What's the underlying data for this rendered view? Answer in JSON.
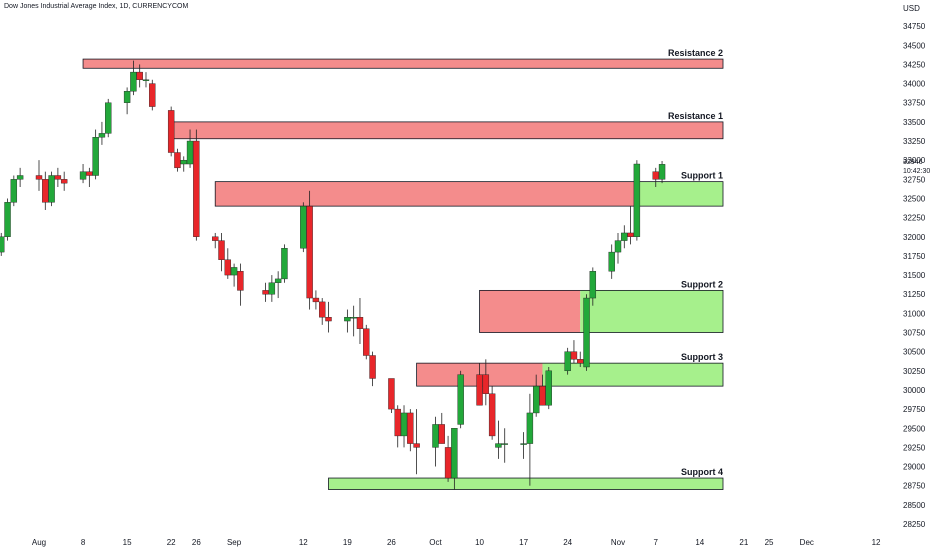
{
  "chart_title": "Dow Jones Industrial Average Index, 1D, CURRENCYCOM",
  "colors": {
    "up": "#22a83a",
    "down": "#e8262a",
    "resistance_fill": "#f48c8c",
    "support_fill": "#a6f08c",
    "zone_border": "#131722"
  },
  "chart_data": {
    "type": "candlestick",
    "title": "Dow Jones Industrial Average Index, 1D, CURRENCYCOM",
    "currency": "USD",
    "ylim": [
      28250,
      35000
    ],
    "y_ticks": [
      28250,
      28500,
      28750,
      29000,
      29250,
      29500,
      29750,
      30000,
      30250,
      30500,
      30750,
      31000,
      31250,
      31500,
      31750,
      32000,
      32250,
      32500,
      32750,
      33000,
      33250,
      33500,
      33750,
      34000,
      34250,
      34500,
      34750
    ],
    "x_ticks": [
      {
        "label": "Aug",
        "date": "2022-08-01"
      },
      {
        "label": "8",
        "date": "2022-08-08"
      },
      {
        "label": "15",
        "date": "2022-08-15"
      },
      {
        "label": "22",
        "date": "2022-08-22"
      },
      {
        "label": "26",
        "date": "2022-08-26"
      },
      {
        "label": "Sep",
        "date": "2022-09-01"
      },
      {
        "label": "12",
        "date": "2022-09-12"
      },
      {
        "label": "19",
        "date": "2022-09-19"
      },
      {
        "label": "26",
        "date": "2022-09-26"
      },
      {
        "label": "Oct",
        "date": "2022-10-03"
      },
      {
        "label": "10",
        "date": "2022-10-10"
      },
      {
        "label": "17",
        "date": "2022-10-17"
      },
      {
        "label": "24",
        "date": "2022-10-24"
      },
      {
        "label": "Nov",
        "date": "2022-11-01"
      },
      {
        "label": "7",
        "date": "2022-11-07"
      },
      {
        "label": "14",
        "date": "2022-11-14"
      },
      {
        "label": "21",
        "date": "2022-11-21"
      },
      {
        "label": "25",
        "date": "2022-11-25"
      },
      {
        "label": "Dec",
        "date": "2022-12-01"
      },
      {
        "label": "12",
        "date": "2022-12-12"
      }
    ],
    "price_tags": [
      "32946",
      "10:42:30"
    ],
    "candles": [
      {
        "date": "2022-07-25",
        "o": 31750,
        "h": 31850,
        "l": 31700,
        "c": 31800
      },
      {
        "date": "2022-07-26",
        "o": 31800,
        "h": 32050,
        "l": 31750,
        "c": 32000
      },
      {
        "date": "2022-07-27",
        "o": 32000,
        "h": 32500,
        "l": 31950,
        "c": 32450
      },
      {
        "date": "2022-07-28",
        "o": 32450,
        "h": 32800,
        "l": 32400,
        "c": 32750
      },
      {
        "date": "2022-07-29",
        "o": 32750,
        "h": 32900,
        "l": 32650,
        "c": 32800
      },
      {
        "date": "2022-08-01",
        "o": 32800,
        "h": 33000,
        "l": 32600,
        "c": 32750
      },
      {
        "date": "2022-08-02",
        "o": 32750,
        "h": 32850,
        "l": 32350,
        "c": 32450
      },
      {
        "date": "2022-08-03",
        "o": 32450,
        "h": 32850,
        "l": 32400,
        "c": 32800
      },
      {
        "date": "2022-08-04",
        "o": 32800,
        "h": 32900,
        "l": 32650,
        "c": 32750
      },
      {
        "date": "2022-08-05",
        "o": 32750,
        "h": 32850,
        "l": 32600,
        "c": 32700
      },
      {
        "date": "2022-08-08",
        "o": 32750,
        "h": 32950,
        "l": 32700,
        "c": 32850
      },
      {
        "date": "2022-08-09",
        "o": 32850,
        "h": 32900,
        "l": 32650,
        "c": 32800
      },
      {
        "date": "2022-08-10",
        "o": 32800,
        "h": 33400,
        "l": 32750,
        "c": 33300
      },
      {
        "date": "2022-08-11",
        "o": 33300,
        "h": 33500,
        "l": 33200,
        "c": 33350
      },
      {
        "date": "2022-08-12",
        "o": 33350,
        "h": 33800,
        "l": 33300,
        "c": 33750
      },
      {
        "date": "2022-08-15",
        "o": 33750,
        "h": 33950,
        "l": 33600,
        "c": 33900
      },
      {
        "date": "2022-08-16",
        "o": 33900,
        "h": 34300,
        "l": 33850,
        "c": 34150
      },
      {
        "date": "2022-08-17",
        "o": 34150,
        "h": 34250,
        "l": 33950,
        "c": 34050
      },
      {
        "date": "2022-08-18",
        "o": 34050,
        "h": 34150,
        "l": 33950,
        "c": 34050
      },
      {
        "date": "2022-08-19",
        "o": 34000,
        "h": 34050,
        "l": 33650,
        "c": 33700
      },
      {
        "date": "2022-08-22",
        "o": 33650,
        "h": 33700,
        "l": 33050,
        "c": 33100
      },
      {
        "date": "2022-08-23",
        "o": 33100,
        "h": 33150,
        "l": 32850,
        "c": 32900
      },
      {
        "date": "2022-08-24",
        "o": 32950,
        "h": 33050,
        "l": 32850,
        "c": 33000
      },
      {
        "date": "2022-08-25",
        "o": 32950,
        "h": 33400,
        "l": 32900,
        "c": 33250
      },
      {
        "date": "2022-08-26",
        "o": 33250,
        "h": 33400,
        "l": 31950,
        "c": 32000
      },
      {
        "date": "2022-08-29",
        "o": 32000,
        "h": 32050,
        "l": 31850,
        "c": 31950
      },
      {
        "date": "2022-08-30",
        "o": 31950,
        "h": 32050,
        "l": 31550,
        "c": 31700
      },
      {
        "date": "2022-08-31",
        "o": 31700,
        "h": 31850,
        "l": 31450,
        "c": 31500
      },
      {
        "date": "2022-09-01",
        "o": 31500,
        "h": 31650,
        "l": 31350,
        "c": 31600
      },
      {
        "date": "2022-09-02",
        "o": 31550,
        "h": 31650,
        "l": 31100,
        "c": 31300
      },
      {
        "date": "2022-09-06",
        "o": 31300,
        "h": 31400,
        "l": 31150,
        "c": 31250
      },
      {
        "date": "2022-09-07",
        "o": 31250,
        "h": 31500,
        "l": 31150,
        "c": 31400
      },
      {
        "date": "2022-09-08",
        "o": 31400,
        "h": 31550,
        "l": 31200,
        "c": 31450
      },
      {
        "date": "2022-09-09",
        "o": 31450,
        "h": 31900,
        "l": 31400,
        "c": 31850
      },
      {
        "date": "2022-09-12",
        "o": 31850,
        "h": 32450,
        "l": 31800,
        "c": 32400
      },
      {
        "date": "2022-09-13",
        "o": 32400,
        "h": 32600,
        "l": 31050,
        "c": 31200
      },
      {
        "date": "2022-09-14",
        "o": 31200,
        "h": 31300,
        "l": 31050,
        "c": 31150
      },
      {
        "date": "2022-09-15",
        "o": 31150,
        "h": 31200,
        "l": 30850,
        "c": 30950
      },
      {
        "date": "2022-09-16",
        "o": 30950,
        "h": 31150,
        "l": 30750,
        "c": 30900
      },
      {
        "date": "2022-09-19",
        "o": 30900,
        "h": 31050,
        "l": 30750,
        "c": 30950
      },
      {
        "date": "2022-09-20",
        "o": 30950,
        "h": 31100,
        "l": 30700,
        "c": 30950
      },
      {
        "date": "2022-09-21",
        "o": 30950,
        "h": 31200,
        "l": 30600,
        "c": 30800
      },
      {
        "date": "2022-09-22",
        "o": 30800,
        "h": 30850,
        "l": 30400,
        "c": 30450
      },
      {
        "date": "2022-09-23",
        "o": 30450,
        "h": 30500,
        "l": 30050,
        "c": 30150
      },
      {
        "date": "2022-09-26",
        "o": 30150,
        "h": 30150,
        "l": 29700,
        "c": 29750
      },
      {
        "date": "2022-09-27",
        "o": 29750,
        "h": 29800,
        "l": 29250,
        "c": 29400
      },
      {
        "date": "2022-09-28",
        "o": 29400,
        "h": 29800,
        "l": 29250,
        "c": 29700
      },
      {
        "date": "2022-09-29",
        "o": 29700,
        "h": 29750,
        "l": 29200,
        "c": 29300
      },
      {
        "date": "2022-09-30",
        "o": 29300,
        "h": 29750,
        "l": 28900,
        "c": 29250
      },
      {
        "date": "2022-10-03",
        "o": 29250,
        "h": 29650,
        "l": 29000,
        "c": 29550
      },
      {
        "date": "2022-10-04",
        "o": 29550,
        "h": 29700,
        "l": 29300,
        "c": 29300
      },
      {
        "date": "2022-10-05",
        "o": 29250,
        "h": 29400,
        "l": 28800,
        "c": 28850
      },
      {
        "date": "2022-10-06",
        "o": 28850,
        "h": 29500,
        "l": 28700,
        "c": 29500
      },
      {
        "date": "2022-10-07",
        "o": 29550,
        "h": 30250,
        "l": 29500,
        "c": 30200
      },
      {
        "date": "2022-10-10",
        "o": 30200,
        "h": 30350,
        "l": 29800,
        "c": 29800
      },
      {
        "date": "2022-10-11",
        "o": 30200,
        "h": 30400,
        "l": 29800,
        "c": 29950
      },
      {
        "date": "2022-10-12",
        "o": 29950,
        "h": 30050,
        "l": 29350,
        "c": 29400
      },
      {
        "date": "2022-10-13",
        "o": 29250,
        "h": 29600,
        "l": 29100,
        "c": 29300
      },
      {
        "date": "2022-10-14",
        "o": 29300,
        "h": 29500,
        "l": 29050,
        "c": 29300
      },
      {
        "date": "2022-10-17",
        "o": 29300,
        "h": 29450,
        "l": 29100,
        "c": 29300
      },
      {
        "date": "2022-10-18",
        "o": 29300,
        "h": 29950,
        "l": 28750,
        "c": 29700
      },
      {
        "date": "2022-10-19",
        "o": 29700,
        "h": 30200,
        "l": 29650,
        "c": 30050
      },
      {
        "date": "2022-10-20",
        "o": 30050,
        "h": 30200,
        "l": 29800,
        "c": 29800
      },
      {
        "date": "2022-10-21",
        "o": 29800,
        "h": 30300,
        "l": 29750,
        "c": 30250
      },
      {
        "date": "2022-10-24",
        "o": 30250,
        "h": 30550,
        "l": 30200,
        "c": 30500
      },
      {
        "date": "2022-10-25",
        "o": 30500,
        "h": 30650,
        "l": 30350,
        "c": 30400
      },
      {
        "date": "2022-10-26",
        "o": 30400,
        "h": 30500,
        "l": 30300,
        "c": 30350
      },
      {
        "date": "2022-10-27",
        "o": 30300,
        "h": 31250,
        "l": 30250,
        "c": 31200
      },
      {
        "date": "2022-10-28",
        "o": 31200,
        "h": 31600,
        "l": 31100,
        "c": 31550
      },
      {
        "date": "2022-10-31",
        "o": 31550,
        "h": 31900,
        "l": 31450,
        "c": 31800
      },
      {
        "date": "2022-11-01",
        "o": 31800,
        "h": 32050,
        "l": 31650,
        "c": 31950
      },
      {
        "date": "2022-11-02",
        "o": 31950,
        "h": 32150,
        "l": 31850,
        "c": 32050
      },
      {
        "date": "2022-11-03",
        "o": 32050,
        "h": 32400,
        "l": 31900,
        "c": 32000
      },
      {
        "date": "2022-11-04",
        "o": 32000,
        "h": 33000,
        "l": 31950,
        "c": 32950
      },
      {
        "date": "2022-11-07",
        "o": 32850,
        "h": 32900,
        "l": 32650,
        "c": 32750
      },
      {
        "date": "2022-11-08",
        "o": 32750,
        "h": 32990,
        "l": 32700,
        "c": 32946
      }
    ],
    "zones": [
      {
        "name": "Resistance 2",
        "kind": "resistance",
        "low": 34200,
        "high": 34320,
        "start": "2022-08-08"
      },
      {
        "name": "Resistance 1",
        "kind": "resistance",
        "low": 33280,
        "high": 33500,
        "start": "2022-08-22"
      },
      {
        "name": "Support 1",
        "kind": "mixed",
        "low": 32400,
        "high": 32720,
        "start": "2022-08-29",
        "split": "2022-11-04"
      },
      {
        "name": "Support 2",
        "kind": "mixed",
        "low": 30750,
        "high": 31300,
        "start": "2022-10-10",
        "split": "2022-10-26"
      },
      {
        "name": "Support 3",
        "kind": "mixed",
        "low": 30050,
        "high": 30350,
        "start": "2022-09-30",
        "split": "2022-10-20"
      },
      {
        "name": "Support 4",
        "kind": "support",
        "low": 28700,
        "high": 28850,
        "start": "2022-09-16"
      }
    ]
  }
}
